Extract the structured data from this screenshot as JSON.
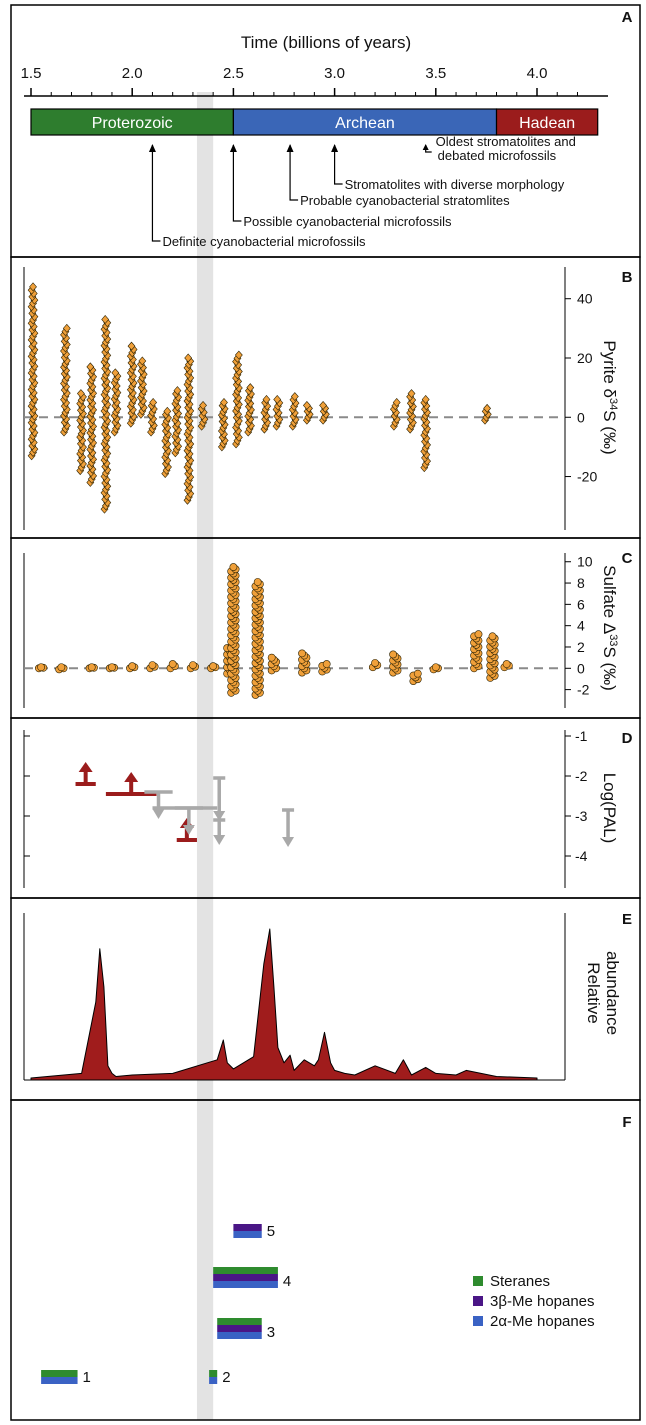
{
  "colors": {
    "proterozoic": "#2e7d2e",
    "archean": "#3a66b7",
    "hadean": "#9b1c1c",
    "marker_orange": "#f0a03a",
    "marker_outline": "#2a2000",
    "dashed_zero": "#8a8a8a",
    "red_arrow": "#9b1c1c",
    "grey_arrow": "#a9a9a9",
    "gray_band": "#e3e3e3",
    "abundance_fill": "#a01c1c",
    "steranes": "#2e8b2e",
    "hopane3b": "#4a1686",
    "hopane2a": "#3a62c4"
  },
  "chart_data": [
    {
      "panel": "A",
      "type": "timeline",
      "title": "Time (billions of years)",
      "x_ticks": [
        "1.5",
        "2.0",
        "2.5",
        "3.0",
        "3.5",
        "4.0"
      ],
      "xlim": [
        1.5,
        4.3
      ],
      "eons": [
        {
          "name": "Proterozoic",
          "start": 1.5,
          "end": 2.5
        },
        {
          "name": "Archean",
          "start": 2.5,
          "end": 3.8
        },
        {
          "name": "Hadean",
          "start": 3.8,
          "end": 4.3
        }
      ],
      "annotations": [
        {
          "age": 2.1,
          "text": "Definite cyanobacterial microfossils"
        },
        {
          "age": 2.5,
          "text": "Possible cyanobacterial microfossils"
        },
        {
          "age": 2.78,
          "text": "Probable cyanobacterial stratomlites"
        },
        {
          "age": 3.0,
          "text": "Stromatolites with diverse morphology"
        },
        {
          "age": 3.45,
          "text": "Oldest stromatolites and debated microfossils"
        }
      ],
      "gray_band": [
        2.32,
        2.4
      ]
    },
    {
      "panel": "B",
      "type": "scatter",
      "ylabel": "Pyrite δ34S (‰)",
      "yticks": [
        -20,
        0,
        20,
        40
      ],
      "ylim": [
        -35,
        48
      ],
      "clusters": [
        {
          "x": 1.51,
          "ymin": -13,
          "ymax": 44
        },
        {
          "x": 1.67,
          "ymin": -5,
          "ymax": 30
        },
        {
          "x": 1.75,
          "ymin": -18,
          "ymax": 8
        },
        {
          "x": 1.8,
          "ymin": -22,
          "ymax": 17
        },
        {
          "x": 1.87,
          "ymin": -31,
          "ymax": 33
        },
        {
          "x": 1.92,
          "ymin": -5,
          "ymax": 15
        },
        {
          "x": 2.0,
          "ymin": -2,
          "ymax": 24
        },
        {
          "x": 2.05,
          "ymin": 1,
          "ymax": 19
        },
        {
          "x": 2.1,
          "ymin": -5,
          "ymax": 5
        },
        {
          "x": 2.17,
          "ymin": -19,
          "ymax": 2
        },
        {
          "x": 2.22,
          "ymin": -12,
          "ymax": 9
        },
        {
          "x": 2.28,
          "ymin": -28,
          "ymax": 20
        },
        {
          "x": 2.35,
          "ymin": -3,
          "ymax": 4
        },
        {
          "x": 2.45,
          "ymin": -10,
          "ymax": 5
        },
        {
          "x": 2.52,
          "ymin": -9,
          "ymax": 21
        },
        {
          "x": 2.58,
          "ymin": -5,
          "ymax": 10
        },
        {
          "x": 2.66,
          "ymin": -4,
          "ymax": 6
        },
        {
          "x": 2.72,
          "ymin": -3,
          "ymax": 6
        },
        {
          "x": 2.8,
          "ymin": -3,
          "ymax": 7
        },
        {
          "x": 2.87,
          "ymin": -1,
          "ymax": 4
        },
        {
          "x": 2.95,
          "ymin": -1,
          "ymax": 4
        },
        {
          "x": 3.3,
          "ymin": -3,
          "ymax": 5
        },
        {
          "x": 3.38,
          "ymin": -4,
          "ymax": 8
        },
        {
          "x": 3.45,
          "ymin": -17,
          "ymax": 6
        },
        {
          "x": 3.75,
          "ymin": -1,
          "ymax": 3
        }
      ]
    },
    {
      "panel": "C",
      "type": "scatter",
      "ylabel": "Sulfate Δ33S (‰)",
      "yticks": [
        -2,
        0,
        2,
        4,
        6,
        8,
        10
      ],
      "ylim": [
        -2.8,
        10
      ],
      "clusters": [
        {
          "x": 1.55,
          "ymin": 0,
          "ymax": 0.1
        },
        {
          "x": 1.65,
          "ymin": -0.1,
          "ymax": 0.1
        },
        {
          "x": 1.8,
          "ymin": 0,
          "ymax": 0.1
        },
        {
          "x": 1.9,
          "ymin": 0,
          "ymax": 0.1
        },
        {
          "x": 2.0,
          "ymin": 0,
          "ymax": 0.2
        },
        {
          "x": 2.1,
          "ymin": 0,
          "ymax": 0.3
        },
        {
          "x": 2.2,
          "ymin": 0,
          "ymax": 0.4
        },
        {
          "x": 2.3,
          "ymin": 0,
          "ymax": 0.3
        },
        {
          "x": 2.4,
          "ymin": 0,
          "ymax": 0.2
        },
        {
          "x": 2.48,
          "ymin": -0.5,
          "ymax": 2.1
        },
        {
          "x": 2.5,
          "ymin": -2.3,
          "ymax": 9.5
        },
        {
          "x": 2.62,
          "ymin": -2.5,
          "ymax": 8.1
        },
        {
          "x": 2.7,
          "ymin": -0.2,
          "ymax": 1.0
        },
        {
          "x": 2.85,
          "ymin": -0.4,
          "ymax": 1.4
        },
        {
          "x": 2.95,
          "ymin": -0.3,
          "ymax": 0.4
        },
        {
          "x": 3.2,
          "ymin": 0.1,
          "ymax": 0.5
        },
        {
          "x": 3.3,
          "ymin": -0.4,
          "ymax": 1.3
        },
        {
          "x": 3.4,
          "ymin": -1.2,
          "ymax": -0.5
        },
        {
          "x": 3.5,
          "ymin": -0.1,
          "ymax": 0.1
        },
        {
          "x": 3.7,
          "ymin": 0.0,
          "ymax": 3.2
        },
        {
          "x": 3.78,
          "ymin": -0.9,
          "ymax": 3.0
        },
        {
          "x": 3.85,
          "ymin": 0.1,
          "ymax": 0.4
        }
      ]
    },
    {
      "panel": "D",
      "type": "bounds",
      "ylabel": "Log(PAL)",
      "yticks": [
        -1,
        -2,
        -3,
        -4
      ],
      "ylim": [
        -4.3,
        -0.9
      ],
      "lower_bounds": [
        {
          "x0": 1.72,
          "x1": 1.82,
          "y": -2.2,
          "color": "red_arrow"
        },
        {
          "x0": 1.87,
          "x1": 2.12,
          "y": -2.45,
          "color": "red_arrow"
        },
        {
          "x0": 2.22,
          "x1": 2.32,
          "y": -3.6,
          "color": "red_arrow"
        }
      ],
      "upper_bounds": [
        {
          "x0": 2.1,
          "x1": 2.2,
          "y": -2.45,
          "color": "grey_arrow"
        },
        {
          "x0": 2.1,
          "x1": 2.4,
          "y": -2.85,
          "color": "grey_arrow"
        },
        {
          "x0": 2.25,
          "x1": 2.3,
          "y": -2.9,
          "color": "grey_arrow"
        },
        {
          "x0": 2.42,
          "x1": 2.44,
          "y": -2.1,
          "color": "grey_arrow"
        },
        {
          "x0": 2.42,
          "x1": 2.44,
          "y": -3.1,
          "color": "grey_arrow"
        },
        {
          "x0": 2.76,
          "x1": 2.78,
          "y": -2.85,
          "color": "grey_arrow"
        }
      ]
    },
    {
      "panel": "E",
      "type": "area",
      "ylabel": "Relative abundance",
      "x": [
        1.5,
        1.75,
        1.82,
        1.84,
        1.86,
        1.88,
        1.9,
        1.92,
        2.0,
        2.2,
        2.42,
        2.45,
        2.47,
        2.5,
        2.6,
        2.65,
        2.68,
        2.7,
        2.72,
        2.75,
        2.78,
        2.8,
        2.85,
        2.9,
        2.92,
        2.95,
        2.98,
        3.0,
        3.05,
        3.1,
        3.2,
        3.3,
        3.34,
        3.36,
        3.38,
        3.45,
        3.5,
        3.6,
        3.65,
        3.8,
        4.0
      ],
      "y": [
        0.0,
        0.03,
        0.5,
        0.85,
        0.6,
        0.08,
        0.03,
        0.01,
        0.02,
        0.03,
        0.12,
        0.25,
        0.1,
        0.06,
        0.14,
        0.75,
        0.98,
        0.6,
        0.2,
        0.1,
        0.15,
        0.05,
        0.12,
        0.08,
        0.12,
        0.3,
        0.1,
        0.05,
        0.03,
        0.02,
        0.08,
        0.03,
        0.12,
        0.07,
        0.02,
        0.07,
        0.03,
        0.02,
        0.05,
        0.01,
        0.0
      ]
    },
    {
      "panel": "F",
      "type": "bars",
      "legend": [
        {
          "label": "Steranes",
          "color": "steranes"
        },
        {
          "label": "3β-Me hopanes",
          "color": "hopane3b"
        },
        {
          "label": "2α-Me hopanes",
          "color": "hopane2a"
        }
      ],
      "groups": [
        {
          "label": "1",
          "x0": 1.55,
          "x1": 1.73,
          "series": [
            "steranes",
            "hopane2a"
          ]
        },
        {
          "label": "2",
          "x0": 2.38,
          "x1": 2.42,
          "series": [
            "steranes",
            "hopane2a"
          ]
        },
        {
          "label": "3",
          "x0": 2.42,
          "x1": 2.64,
          "series": [
            "steranes",
            "hopane3b",
            "hopane2a"
          ]
        },
        {
          "label": "4",
          "x0": 2.4,
          "x1": 2.72,
          "series": [
            "steranes",
            "hopane3b",
            "hopane2a"
          ]
        },
        {
          "label": "5",
          "x0": 2.5,
          "x1": 2.64,
          "series": [
            "hopane3b",
            "hopane2a"
          ]
        }
      ]
    }
  ],
  "labels": {
    "panelA": "A",
    "panelB": "B",
    "panelC": "C",
    "panelD": "D",
    "panelE": "E",
    "panelF": "F",
    "B_y_tick_40": "40",
    "B_y_tick_20": "20",
    "B_y_tick_0": "0",
    "B_y_tick_m20": "-20",
    "C_y_tick_10": "10",
    "C_y_tick_8": "8",
    "C_y_tick_6": "6",
    "C_y_tick_4": "4",
    "C_y_tick_2": "2",
    "C_y_tick_0": "0",
    "C_y_tick_m2": "-2",
    "D_y_tick_m1": "-1",
    "D_y_tick_m2": "-2",
    "D_y_tick_m3": "-3",
    "D_y_tick_m4": "-4",
    "B_ylabel_main": "Pyrite δ",
    "B_ylabel_sup": "34",
    "B_ylabel_tail": "S (‰)",
    "C_ylabel_main": "Sulfate Δ",
    "C_ylabel_sup": "33",
    "C_ylabel_tail": "S (‰)",
    "D_ylabel": "Log(PAL)",
    "E_ylabel1": "Relative",
    "E_ylabel2": "abundance"
  }
}
